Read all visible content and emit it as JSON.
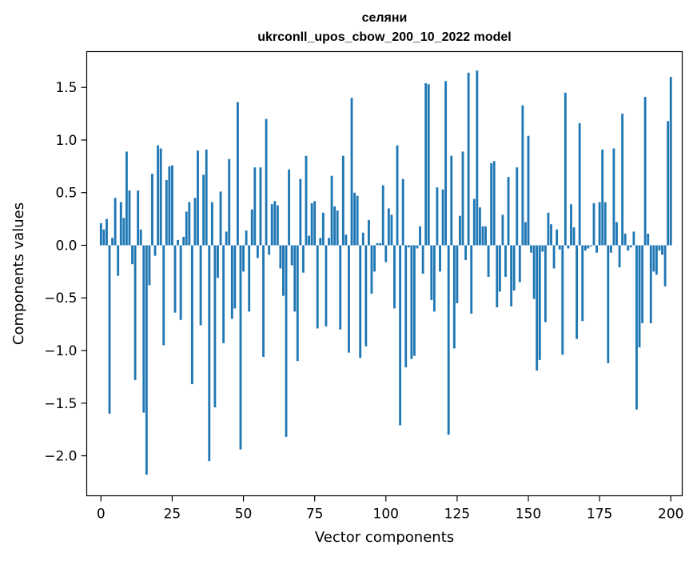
{
  "chart_data": {
    "type": "bar",
    "title": "селяни",
    "subtitle": "ukrconll_upos_cbow_200_10_2022 model",
    "xlabel": "Vector components",
    "ylabel": "Components values",
    "xlim": [
      -5,
      204
    ],
    "ylim": [
      -2.38,
      1.84
    ],
    "xticks": [
      0,
      25,
      50,
      75,
      100,
      125,
      150,
      175,
      200
    ],
    "xtick_labels": [
      "0",
      "25",
      "50",
      "75",
      "100",
      "125",
      "150",
      "175",
      "200"
    ],
    "yticks": [
      -2.0,
      -1.5,
      -1.0,
      -0.5,
      0.0,
      0.5,
      1.0,
      1.5
    ],
    "ytick_labels": [
      "−2.0",
      "−1.5",
      "−1.0",
      "−0.5",
      "0.0",
      "0.5",
      "1.0",
      "1.5"
    ],
    "bar_color": "#1f77b4",
    "grid": false,
    "legend": "none",
    "values": [
      0.21,
      0.15,
      0.25,
      -1.6,
      0.07,
      0.45,
      -0.29,
      0.41,
      0.26,
      0.89,
      0.52,
      -0.18,
      -1.28,
      0.52,
      0.15,
      -1.59,
      -2.18,
      -0.38,
      0.68,
      -0.1,
      0.95,
      0.92,
      -0.95,
      0.62,
      0.75,
      0.76,
      -0.64,
      0.05,
      -0.71,
      0.08,
      0.32,
      0.41,
      -1.32,
      0.45,
      0.9,
      -0.76,
      0.67,
      0.91,
      -2.05,
      0.41,
      -1.54,
      -0.31,
      0.51,
      -0.93,
      0.13,
      0.82,
      -0.7,
      -0.6,
      1.36,
      -1.94,
      -0.25,
      0.14,
      -0.63,
      0.34,
      0.74,
      -0.12,
      0.74,
      -1.06,
      1.2,
      -0.09,
      0.39,
      0.42,
      0.38,
      -0.22,
      -0.48,
      -1.82,
      0.72,
      -0.19,
      -0.63,
      -1.1,
      0.63,
      -0.26,
      0.85,
      0.09,
      0.4,
      0.42,
      -0.79,
      0.07,
      0.31,
      -0.77,
      0.07,
      0.66,
      0.37,
      0.33,
      -0.8,
      0.85,
      0.1,
      -1.02,
      1.4,
      0.5,
      0.47,
      -1.07,
      0.12,
      -0.96,
      0.24,
      -0.46,
      -0.25,
      0.02,
      0.02,
      0.57,
      -0.16,
      0.35,
      0.29,
      -0.6,
      0.95,
      -1.71,
      0.63,
      -1.16,
      -0.02,
      -1.08,
      -1.05,
      -0.03,
      0.18,
      -0.27,
      1.54,
      1.53,
      -0.52,
      -0.63,
      0.55,
      -0.25,
      0.53,
      1.56,
      -1.8,
      0.85,
      -0.98,
      -0.55,
      0.28,
      0.89,
      -0.14,
      1.64,
      -0.65,
      0.44,
      1.66,
      0.36,
      0.18,
      0.18,
      -0.3,
      0.78,
      0.8,
      -0.59,
      -0.44,
      0.29,
      -0.3,
      0.65,
      -0.58,
      -0.43,
      0.74,
      -0.35,
      1.33,
      0.22,
      1.04,
      -0.07,
      -0.51,
      -1.19,
      -1.09,
      -0.06,
      -0.73,
      0.31,
      0.2,
      -0.22,
      0.15,
      -0.04,
      -1.04,
      1.45,
      -0.03,
      0.39,
      0.17,
      -0.89,
      1.16,
      -0.72,
      -0.05,
      -0.03,
      -0.01,
      0.4,
      -0.07,
      0.41,
      0.91,
      0.41,
      -1.12,
      -0.07,
      0.92,
      0.22,
      -0.21,
      1.25,
      0.11,
      -0.05,
      -0.02,
      0.13,
      -1.56,
      -0.97,
      -0.74,
      1.41,
      0.11,
      -0.74,
      -0.25,
      -0.28,
      -0.05,
      -0.09,
      -0.39,
      1.18,
      1.6
    ]
  }
}
